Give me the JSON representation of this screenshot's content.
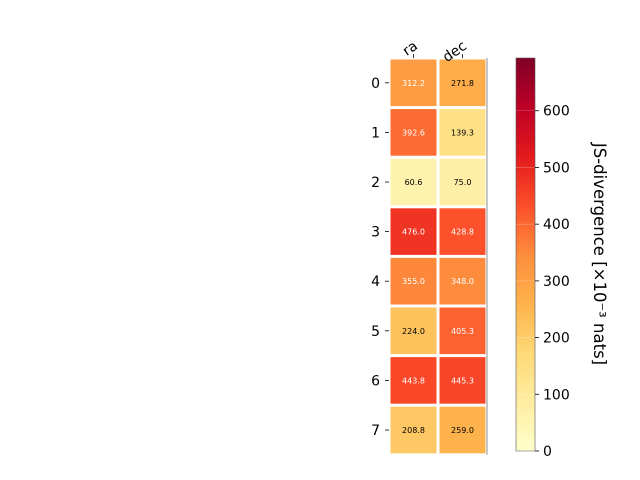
{
  "chart_data": {
    "type": "heatmap",
    "columns": [
      "ra",
      "dec"
    ],
    "rows": [
      "0",
      "1",
      "2",
      "3",
      "4",
      "5",
      "6",
      "7"
    ],
    "values": [
      [
        312.2,
        271.8
      ],
      [
        392.6,
        139.3
      ],
      [
        60.6,
        75.0
      ],
      [
        476.0,
        428.8
      ],
      [
        355.0,
        348.0
      ],
      [
        224.0,
        405.3
      ],
      [
        443.8,
        445.3
      ],
      [
        208.8,
        259.0
      ]
    ],
    "cell_labels": [
      [
        "312.2",
        "271.8"
      ],
      [
        "392.6",
        "139.3"
      ],
      [
        "60.6",
        "75.0"
      ],
      [
        "476.0",
        "428.8"
      ],
      [
        "355.0",
        "348.0"
      ],
      [
        "224.0",
        "405.3"
      ],
      [
        "443.8",
        "445.3"
      ],
      [
        "208.8",
        "259.0"
      ]
    ],
    "colorbar": {
      "label": "JS-divergence [×10⁻³ nats]",
      "min": 0,
      "max": 693,
      "ticks": [
        0,
        100,
        200,
        300,
        400,
        500,
        600
      ],
      "tick_labels": [
        "0",
        "100",
        "200",
        "300",
        "400",
        "500",
        "600"
      ],
      "colormap": "YlOrRd"
    }
  }
}
